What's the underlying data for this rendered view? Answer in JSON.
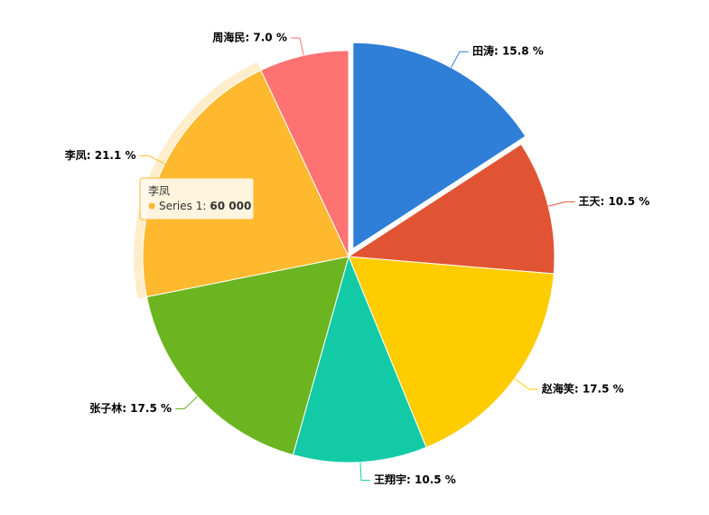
{
  "chart_data": {
    "type": "pie",
    "categories": [
      "田涛",
      "王天",
      "赵海笑",
      "王翔宇",
      "张子林",
      "李凤",
      "周海民"
    ],
    "series": [
      {
        "name": "Series 1",
        "values": [
          15.8,
          10.5,
          17.5,
          10.5,
          17.5,
          21.1,
          7.0
        ],
        "value_labels": [
          "田涛: 15.8 %",
          "王天: 10.5 %",
          "赵海笑: 17.5 %",
          "王翔宇: 10.5 %",
          "张子林: 17.5 %",
          "李凤: 21.1 %",
          "周海民: 7.0 %"
        ],
        "colors": [
          "#2f7ed8",
          "#e15433",
          "#ffcc00",
          "#12cba6",
          "#6bb520",
          "#ffb92e",
          "#ff7272"
        ]
      }
    ],
    "sliced": 0,
    "hovered": 5,
    "tooltip": {
      "title": "李凤",
      "series": "Series 1:",
      "value": "60 000"
    }
  }
}
